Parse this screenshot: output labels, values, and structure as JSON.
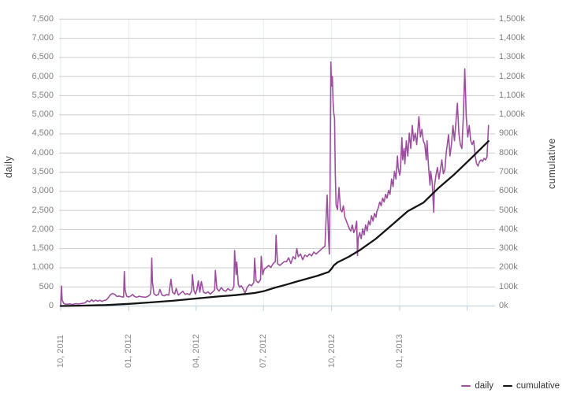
{
  "colors": {
    "background": "#ffffff",
    "grid": "#cccccc",
    "quarter_grid": "#e6ecf1",
    "zero_line": "#b9cfe2",
    "tick_mark": "#b9cfe2",
    "tick_text": "#808080",
    "axis_title_text": "#404040",
    "legend_text": "#333333"
  },
  "chart_data": {
    "type": "line",
    "title": "",
    "x_axis": {
      "tick_labels": [
        "10, 2011",
        "01, 2012",
        "04, 2012",
        "07, 2012",
        "10, 2012",
        "01, 2013"
      ],
      "tick_positions_days": [
        0,
        92,
        183,
        274,
        366,
        458
      ],
      "unlabeled_tick_days": [
        549
      ],
      "domain_days": [
        0,
        578
      ]
    },
    "y_left": {
      "label": "daily",
      "min": 0,
      "max": 7500,
      "tick_step": 500,
      "tick_labels_top_to_bottom": [
        "7,500",
        "7,000",
        "6,500",
        "6,000",
        "5,500",
        "5,000",
        "4,500",
        "4,000",
        "3,500",
        "3,000",
        "2,500",
        "2,000",
        "1,500",
        "1,000",
        "500",
        "0"
      ]
    },
    "y_right": {
      "label": "cumulative",
      "min_k": 0,
      "max_k": 1500,
      "tick_step_k": 100,
      "tick_labels_top_to_bottom": [
        "1,500k",
        "1,400k",
        "1,300k",
        "1,200k",
        "1,100k",
        "1,000k",
        "900k",
        "800k",
        "700k",
        "600k",
        "500k",
        "400k",
        "300k",
        "200k",
        "100k",
        "0k"
      ]
    },
    "legend": [
      {
        "label": "daily",
        "color": "#9c4f9e"
      },
      {
        "label": "cumulative",
        "color": "#141414"
      }
    ],
    "series": [
      {
        "name": "daily",
        "axis": "left",
        "color": "#9c4f9e",
        "points": [
          [
            0,
            30
          ],
          [
            1,
            520
          ],
          [
            2,
            150
          ],
          [
            4,
            70
          ],
          [
            6,
            50
          ],
          [
            9,
            45
          ],
          [
            12,
            55
          ],
          [
            15,
            42
          ],
          [
            18,
            50
          ],
          [
            21,
            60
          ],
          [
            24,
            52
          ],
          [
            27,
            62
          ],
          [
            30,
            70
          ],
          [
            33,
            85
          ],
          [
            36,
            140
          ],
          [
            39,
            110
          ],
          [
            42,
            165
          ],
          [
            44,
            120
          ],
          [
            47,
            155
          ],
          [
            50,
            125
          ],
          [
            53,
            150
          ],
          [
            56,
            120
          ],
          [
            58,
            145
          ],
          [
            61,
            150
          ],
          [
            64,
            210
          ],
          [
            67,
            290
          ],
          [
            70,
            330
          ],
          [
            73,
            305
          ],
          [
            76,
            250
          ],
          [
            79,
            260
          ],
          [
            82,
            240
          ],
          [
            85,
            235
          ],
          [
            86,
            900
          ],
          [
            87,
            420
          ],
          [
            89,
            260
          ],
          [
            92,
            235
          ],
          [
            95,
            265
          ],
          [
            97,
            300
          ],
          [
            100,
            245
          ],
          [
            103,
            230
          ],
          [
            106,
            255
          ],
          [
            109,
            240
          ],
          [
            112,
            235
          ],
          [
            115,
            230
          ],
          [
            118,
            255
          ],
          [
            121,
            300
          ],
          [
            122,
            430
          ],
          [
            123,
            1250
          ],
          [
            124,
            620
          ],
          [
            126,
            320
          ],
          [
            129,
            275
          ],
          [
            132,
            300
          ],
          [
            134,
            430
          ],
          [
            137,
            285
          ],
          [
            140,
            265
          ],
          [
            143,
            300
          ],
          [
            146,
            285
          ],
          [
            149,
            700
          ],
          [
            151,
            360
          ],
          [
            154,
            310
          ],
          [
            156,
            460
          ],
          [
            159,
            285
          ],
          [
            162,
            335
          ],
          [
            165,
            385
          ],
          [
            168,
            305
          ],
          [
            171,
            325
          ],
          [
            174,
            295
          ],
          [
            177,
            390
          ],
          [
            178,
            820
          ],
          [
            180,
            410
          ],
          [
            182,
            310
          ],
          [
            184,
            420
          ],
          [
            186,
            660
          ],
          [
            188,
            360
          ],
          [
            190,
            640
          ],
          [
            193,
            360
          ],
          [
            196,
            330
          ],
          [
            199,
            370
          ],
          [
            202,
            310
          ],
          [
            205,
            360
          ],
          [
            208,
            420
          ],
          [
            209,
            930
          ],
          [
            211,
            460
          ],
          [
            214,
            390
          ],
          [
            217,
            480
          ],
          [
            220,
            410
          ],
          [
            223,
            385
          ],
          [
            226,
            455
          ],
          [
            229,
            405
          ],
          [
            232,
            425
          ],
          [
            234,
            520
          ],
          [
            235,
            1450
          ],
          [
            237,
            820
          ],
          [
            238,
            1150
          ],
          [
            240,
            560
          ],
          [
            242,
            490
          ],
          [
            244,
            530
          ],
          [
            247,
            430
          ],
          [
            249,
            330
          ],
          [
            252,
            490
          ],
          [
            255,
            560
          ],
          [
            258,
            530
          ],
          [
            261,
            620
          ],
          [
            262,
            1250
          ],
          [
            264,
            660
          ],
          [
            267,
            610
          ],
          [
            270,
            690
          ],
          [
            271,
            1300
          ],
          [
            273,
            820
          ],
          [
            275,
            960
          ],
          [
            278,
            1010
          ],
          [
            281,
            1060
          ],
          [
            284,
            1010
          ],
          [
            287,
            1110
          ],
          [
            290,
            1160
          ],
          [
            291,
            1850
          ],
          [
            293,
            1110
          ],
          [
            296,
            1060
          ],
          [
            299,
            1110
          ],
          [
            302,
            1160
          ],
          [
            305,
            1160
          ],
          [
            308,
            1260
          ],
          [
            311,
            1110
          ],
          [
            314,
            1290
          ],
          [
            317,
            1230
          ],
          [
            319,
            1500
          ],
          [
            321,
            1290
          ],
          [
            324,
            1360
          ],
          [
            327,
            1210
          ],
          [
            330,
            1330
          ],
          [
            333,
            1290
          ],
          [
            336,
            1360
          ],
          [
            339,
            1310
          ],
          [
            342,
            1410
          ],
          [
            345,
            1360
          ],
          [
            348,
            1410
          ],
          [
            351,
            1460
          ],
          [
            354,
            1520
          ],
          [
            357,
            1560
          ],
          [
            360,
            2900
          ],
          [
            362,
            1700
          ],
          [
            363,
            1360
          ],
          [
            364,
            3050
          ],
          [
            365,
            6380
          ],
          [
            366,
            5750
          ],
          [
            367,
            6000
          ],
          [
            368,
            5350
          ],
          [
            369,
            5050
          ],
          [
            370,
            4900
          ],
          [
            371,
            3500
          ],
          [
            372,
            2650
          ],
          [
            374,
            2520
          ],
          [
            376,
            3100
          ],
          [
            378,
            2520
          ],
          [
            380,
            2460
          ],
          [
            382,
            2620
          ],
          [
            384,
            2320
          ],
          [
            386,
            2220
          ],
          [
            388,
            2120
          ],
          [
            390,
            2020
          ],
          [
            392,
            1960
          ],
          [
            394,
            2120
          ],
          [
            396,
            1920
          ],
          [
            398,
            2020
          ],
          [
            400,
            2220
          ],
          [
            401,
            1320
          ],
          [
            402,
            1760
          ],
          [
            404,
            1920
          ],
          [
            406,
            1760
          ],
          [
            408,
            2020
          ],
          [
            410,
            1860
          ],
          [
            412,
            2120
          ],
          [
            414,
            1960
          ],
          [
            416,
            2220
          ],
          [
            418,
            2120
          ],
          [
            420,
            2360
          ],
          [
            422,
            2220
          ],
          [
            424,
            2420
          ],
          [
            426,
            2320
          ],
          [
            427,
            2460
          ],
          [
            429,
            2560
          ],
          [
            431,
            2720
          ],
          [
            433,
            2620
          ],
          [
            435,
            2820
          ],
          [
            437,
            2720
          ],
          [
            439,
            2920
          ],
          [
            441,
            2820
          ],
          [
            443,
            3020
          ],
          [
            445,
            2920
          ],
          [
            447,
            3320
          ],
          [
            449,
            3120
          ],
          [
            451,
            3520
          ],
          [
            453,
            3320
          ],
          [
            455,
            3920
          ],
          [
            456,
            3620
          ],
          [
            458,
            3420
          ],
          [
            459,
            3520
          ],
          [
            461,
            4400
          ],
          [
            462,
            3820
          ],
          [
            464,
            4120
          ],
          [
            465,
            3720
          ],
          [
            467,
            4320
          ],
          [
            469,
            3920
          ],
          [
            471,
            4520
          ],
          [
            473,
            4120
          ],
          [
            475,
            4720
          ],
          [
            477,
            4320
          ],
          [
            479,
            4520
          ],
          [
            481,
            4220
          ],
          [
            484,
            4950
          ],
          [
            486,
            4420
          ],
          [
            488,
            4620
          ],
          [
            490,
            4320
          ],
          [
            492,
            4220
          ],
          [
            494,
            3820
          ],
          [
            495,
            4320
          ],
          [
            497,
            3650
          ],
          [
            499,
            3160
          ],
          [
            500,
            3520
          ],
          [
            502,
            3220
          ],
          [
            504,
            2450
          ],
          [
            505,
            3120
          ],
          [
            507,
            3420
          ],
          [
            509,
            3620
          ],
          [
            511,
            3320
          ],
          [
            513,
            3560
          ],
          [
            515,
            3820
          ],
          [
            517,
            3460
          ],
          [
            519,
            3560
          ],
          [
            521,
            4020
          ],
          [
            524,
            4480
          ],
          [
            526,
            3920
          ],
          [
            528,
            4220
          ],
          [
            530,
            4720
          ],
          [
            532,
            4320
          ],
          [
            536,
            5300
          ],
          [
            538,
            4520
          ],
          [
            540,
            4220
          ],
          [
            542,
            4120
          ],
          [
            544,
            4920
          ],
          [
            546,
            6200
          ],
          [
            548,
            4920
          ],
          [
            550,
            4420
          ],
          [
            552,
            4720
          ],
          [
            554,
            4320
          ],
          [
            556,
            4220
          ],
          [
            558,
            4320
          ],
          [
            560,
            3920
          ],
          [
            562,
            3720
          ],
          [
            564,
            3660
          ],
          [
            566,
            3780
          ],
          [
            568,
            3820
          ],
          [
            570,
            3780
          ],
          [
            572,
            3860
          ],
          [
            574,
            3820
          ],
          [
            576,
            3900
          ],
          [
            578,
            4720
          ]
        ]
      },
      {
        "name": "cumulative",
        "axis": "right",
        "color": "#141414",
        "points_k": [
          [
            0,
            0
          ],
          [
            30,
            2
          ],
          [
            61,
            5
          ],
          [
            92,
            11
          ],
          [
            122,
            19
          ],
          [
            151,
            27
          ],
          [
            183,
            39
          ],
          [
            213,
            50
          ],
          [
            236,
            57
          ],
          [
            262,
            68
          ],
          [
            274,
            77
          ],
          [
            289,
            95
          ],
          [
            305,
            112
          ],
          [
            321,
            130
          ],
          [
            347,
            158
          ],
          [
            362,
            178
          ],
          [
            366,
            195
          ],
          [
            369,
            212
          ],
          [
            374,
            228
          ],
          [
            389,
            257
          ],
          [
            405,
            294
          ],
          [
            426,
            352
          ],
          [
            447,
            422
          ],
          [
            469,
            496
          ],
          [
            490,
            540
          ],
          [
            511,
            619
          ],
          [
            532,
            689
          ],
          [
            553,
            767
          ],
          [
            578,
            862
          ]
        ]
      }
    ]
  }
}
